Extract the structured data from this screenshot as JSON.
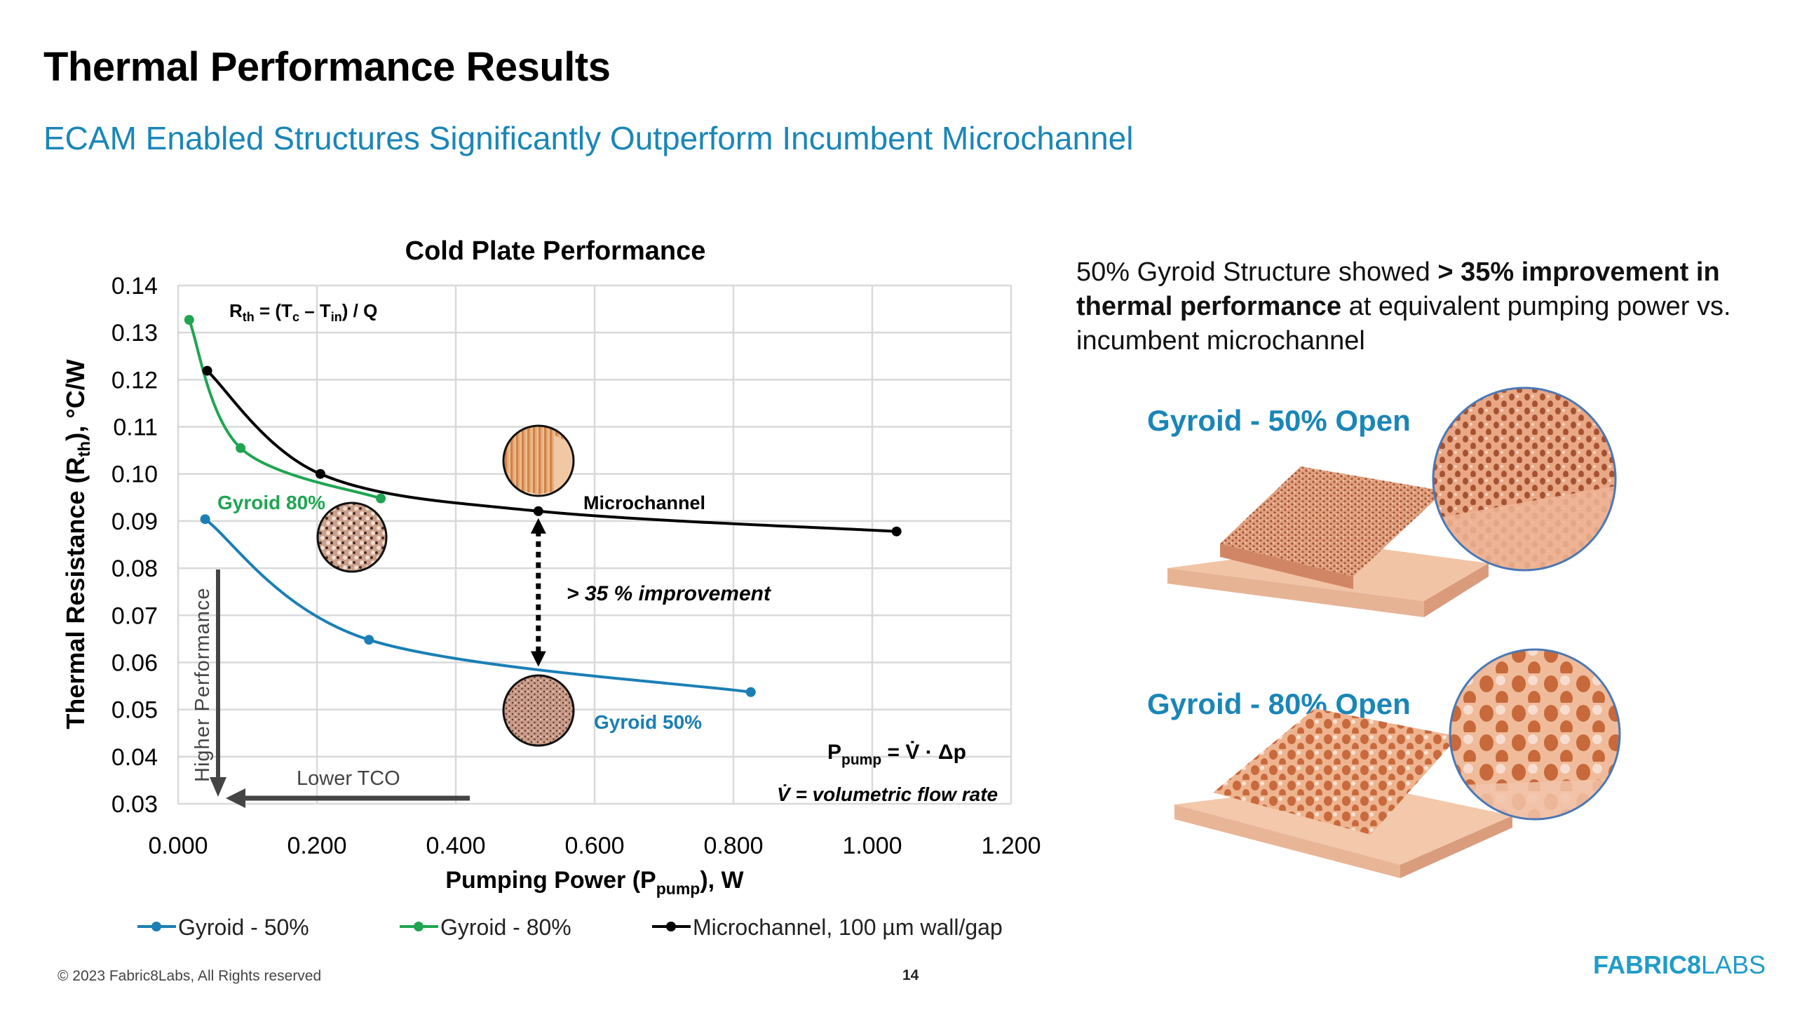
{
  "slide": {
    "title": "Thermal Performance Results",
    "subtitle": "ECAM Enabled Structures Significantly Outperform Incumbent Microchannel",
    "summary": {
      "part1": "50% Gyroid Structure showed ",
      "bold": "> 35% improvement in thermal performance",
      "part2": " at equivalent pumping power vs. incumbent microchannel"
    },
    "samples": [
      {
        "label": "Gyroid - 50% Open"
      },
      {
        "label": "Gyroid - 80% Open"
      }
    ],
    "footer": {
      "copyright": "© 2023 Fabric8Labs, All Rights reserved",
      "page_number": "14",
      "logo_part1": "FABRIC8",
      "logo_part2": "LABS"
    },
    "colors": {
      "accent_blue": "#1a86b8",
      "logo_blue": "#1f9cc9",
      "gyroid50": "#1a7fb5",
      "gyroid80": "#1fa552",
      "microchannel": "#000000"
    }
  },
  "chart_data": {
    "type": "line",
    "title": "Cold Plate Performance",
    "xlabel_main": "Pumping Power (P",
    "xlabel_sub": "pump",
    "xlabel_end": "), W",
    "ylabel_main": "Thermal Resistance (R",
    "ylabel_sub": "th",
    "ylabel_end": "),   °C/W",
    "xlim": [
      0,
      1.2
    ],
    "ylim": [
      0.03,
      0.14
    ],
    "x_ticks": [
      "0.000",
      "0.200",
      "0.400",
      "0.600",
      "0.800",
      "1.000",
      "1.200"
    ],
    "x_tick_values": [
      0,
      0.2,
      0.4,
      0.6,
      0.8,
      1.0,
      1.2
    ],
    "y_ticks": [
      "0.14",
      "0.13",
      "0.12",
      "0.11",
      "0.10",
      "0.09",
      "0.08",
      "0.07",
      "0.06",
      "0.05",
      "0.04",
      "0.03"
    ],
    "y_tick_values": [
      0.14,
      0.13,
      0.12,
      0.11,
      0.1,
      0.09,
      0.08,
      0.07,
      0.06,
      0.05,
      0.04,
      0.03
    ],
    "grid": true,
    "legend_position": "bottom",
    "series": [
      {
        "name": "Gyroid - 50%",
        "label": "Gyroid 50%",
        "color": "#1a7fb5",
        "x": [
          0.039,
          0.275,
          0.825
        ],
        "y": [
          0.0904,
          0.0648,
          0.0537
        ]
      },
      {
        "name": "Gyroid - 80%",
        "label": "Gyroid 80%",
        "color": "#1fa552",
        "x": [
          0.016,
          0.09,
          0.292
        ],
        "y": [
          0.1327,
          0.1055,
          0.0948
        ]
      },
      {
        "name": "Microchannel, 100 µm wall/gap",
        "label": "Microchannel",
        "color": "#000000",
        "x": [
          0.042,
          0.205,
          0.519,
          1.035
        ],
        "y": [
          0.1219,
          0.1,
          0.0921,
          0.0878
        ]
      }
    ],
    "annotations": {
      "rth_formula": {
        "main": "R",
        "sub1": "th",
        "mid": " = (T",
        "sub2": "c",
        "mid2": " – T",
        "sub3": "in",
        "end": ") / Q"
      },
      "improvement": "> 35 % improvement",
      "improvement_arrow": {
        "x": 0.519,
        "y_from": 0.0921,
        "y_to": 0.0585
      },
      "higher_performance": "Higher Performance",
      "lower_tco": "Lower TCO",
      "ppump_formula": {
        "main": "P",
        "sub": "pump",
        "rest": " = V̇  · Δp"
      },
      "vdot_def": "V̇ =  volumetric flow rate"
    }
  }
}
